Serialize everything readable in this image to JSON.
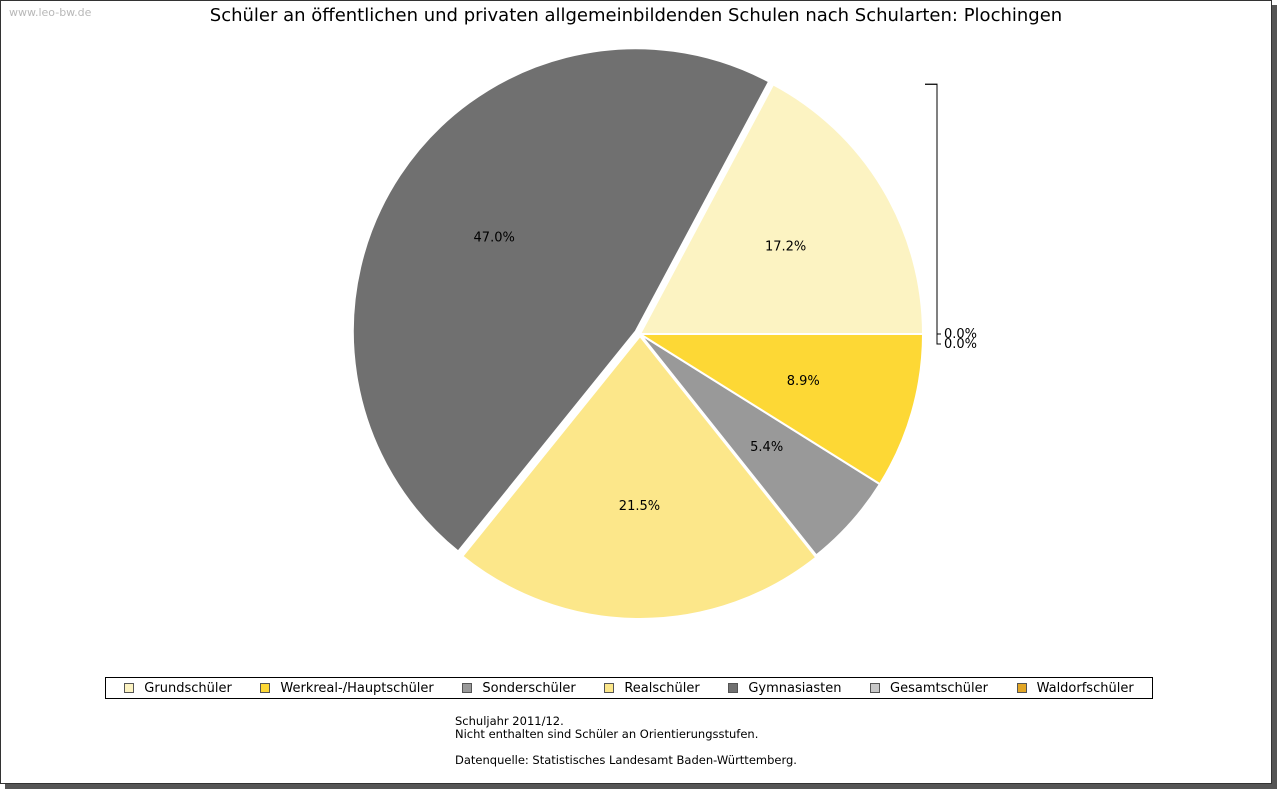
{
  "watermark": "www.leo-bw.de",
  "chart_data": {
    "type": "pie",
    "title": "Schüler an öffentlichen und privaten allgemeinbildenden Schulen nach Schularten: Plochingen",
    "slices": [
      {
        "name": "Grundschüler",
        "value": 17.2,
        "label": "17.2%",
        "color": "#fcf3c2"
      },
      {
        "name": "Gesamtschüler",
        "value": 0.0,
        "label": "0.0%",
        "color": "#c8c8c8"
      },
      {
        "name": "Waldorfschüler",
        "value": 0.0,
        "label": "0.0%",
        "color": "#e2a625"
      },
      {
        "name": "Gymnasiasten",
        "value": 47.0,
        "label": "47.0%",
        "color": "#707070"
      },
      {
        "name": "Realschüler",
        "value": 21.5,
        "label": "21.5%",
        "color": "#fce78a"
      },
      {
        "name": "Sonderschüler",
        "value": 5.4,
        "label": "5.4%",
        "color": "#999999"
      },
      {
        "name": "Werkreal-/Hauptschüler",
        "value": 8.9,
        "label": "8.9%",
        "color": "#fdd835"
      }
    ],
    "legend": [
      {
        "name": "Grundschüler",
        "color": "#fcf3c2"
      },
      {
        "name": "Werkreal-/Hauptschüler",
        "color": "#fdd835"
      },
      {
        "name": "Sonderschüler",
        "color": "#999999"
      },
      {
        "name": "Realschüler",
        "color": "#fce78a"
      },
      {
        "name": "Gymnasiasten",
        "color": "#707070"
      },
      {
        "name": "Gesamtschüler",
        "color": "#c8c8c8"
      },
      {
        "name": "Waldorfschüler",
        "color": "#e2a625"
      }
    ],
    "legend_position": "bottom"
  },
  "notes": {
    "line1": "Schuljahr 2011/12.",
    "line2": "Nicht enthalten sind Schüler an Orientierungsstufen.",
    "source": "Datenquelle: Statistisches Landesamt Baden-Württemberg."
  }
}
